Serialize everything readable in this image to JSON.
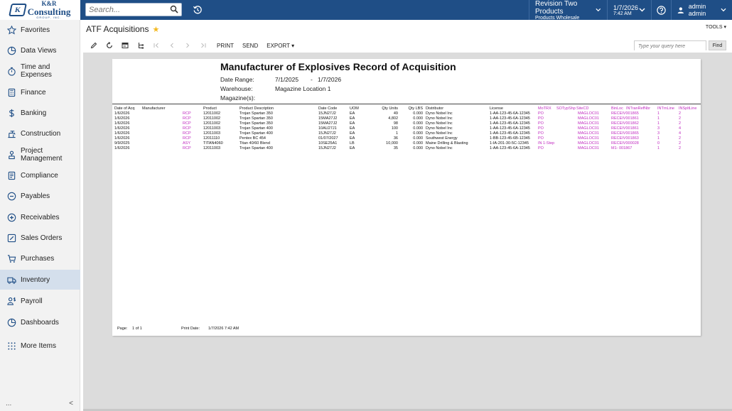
{
  "topbar": {
    "logo": {
      "line1": "K&R",
      "line2": "Consulting",
      "line3": "GROUP, INC.",
      "mark": "K"
    },
    "search_placeholder": "Search...",
    "branch": {
      "name": "Revision Two Products",
      "sub": "Products Wholesale"
    },
    "date": {
      "date": "1/7/2026",
      "time": "7:42 AM"
    },
    "user": "admin admin",
    "icons": [
      "search-icon",
      "history-icon",
      "chevron-down-icon",
      "help-icon",
      "user-icon"
    ],
    "color": "#1f4e86"
  },
  "sidebar": {
    "items": [
      {
        "label": "Favorites",
        "icon": "star-icon"
      },
      {
        "label": "Data Views",
        "icon": "pie-chart-icon"
      },
      {
        "label": "Time and Expenses",
        "icon": "stopwatch-icon"
      },
      {
        "label": "Finance",
        "icon": "calculator-icon"
      },
      {
        "label": "Banking",
        "icon": "dollar-icon"
      },
      {
        "label": "Construction",
        "icon": "construction-icon"
      },
      {
        "label": "Project Management",
        "icon": "project-icon"
      },
      {
        "label": "Compliance",
        "icon": "compliance-icon"
      },
      {
        "label": "Payables",
        "icon": "minus-circle-icon"
      },
      {
        "label": "Receivables",
        "icon": "plus-circle-icon"
      },
      {
        "label": "Sales Orders",
        "icon": "edit-icon"
      },
      {
        "label": "Purchases",
        "icon": "cart-icon"
      },
      {
        "label": "Inventory",
        "icon": "truck-icon"
      },
      {
        "label": "Payroll",
        "icon": "payroll-icon"
      },
      {
        "label": "Dashboards",
        "icon": "dashboard-icon"
      },
      {
        "label": "More Items",
        "icon": "grid-icon"
      }
    ],
    "active": "Inventory",
    "bottom_more": "...",
    "collapse": "<"
  },
  "screen": {
    "title": "ATF Acquisitions",
    "tools": "TOOLS",
    "toolbar": {
      "print": "PRINT",
      "send": "SEND",
      "export": "EXPORT"
    },
    "query_placeholder": "Type your query here",
    "find": "Find"
  },
  "report": {
    "title": "Manufacturer of Explosives Record of Acquisition",
    "date_range_label": "Date Range:",
    "date_from": "7/1/2025",
    "date_sep": "-",
    "date_to": "1/7/2026",
    "warehouse_label": "Warehouse:",
    "warehouse": "Magazine Location 1",
    "magazine_label": "Magazine(s):",
    "columns": [
      "Date of Acq",
      "Manufacturer",
      "Product",
      "Product Description",
      "Date Code",
      "UOM",
      "Qty Units",
      "Qty LBS",
      "Distributor",
      "License",
      "MoTRX",
      "SOTyp",
      "Shp",
      "SiteCD",
      "BinLoc",
      "INTranRefNbr",
      "INTrnLine",
      "INSpltLine"
    ],
    "rows": [
      {
        "date": "1/6/2026",
        "mfr": "RCP",
        "product": "12011002",
        "desc": "Trojan Spartan 350",
        "code": "15JN27J2",
        "uom": "EA",
        "qty": "49",
        "lbs": "0.000",
        "dist": "Dyno Nobel Inc",
        "lic": "1-AA-123-45-6A-12345",
        "motrx": "PO",
        "site": "MAGLOC01",
        "ref": "RECEIV001865",
        "trn": "1",
        "splt": "2"
      },
      {
        "date": "1/6/2026",
        "mfr": "RCP",
        "product": "12011002",
        "desc": "Trojan Spartan 350",
        "code": "15MA27J2",
        "uom": "EA",
        "qty": "4,802",
        "lbs": "0.000",
        "dist": "Dyno Nobel Inc",
        "lic": "1-AA-123-45-6A-12345",
        "motrx": "PO",
        "site": "MAGLOC01",
        "ref": "RECEIV001861",
        "trn": "1",
        "splt": "2"
      },
      {
        "date": "1/6/2026",
        "mfr": "RCP",
        "product": "12011002",
        "desc": "Trojan Spartan 350",
        "code": "15MA27J2",
        "uom": "EA",
        "qty": "98",
        "lbs": "0.000",
        "dist": "Dyno Nobel Inc",
        "lic": "1-AA-123-45-6A-12345",
        "motrx": "PO",
        "site": "MAGLOC01",
        "ref": "RECEIV001862",
        "trn": "1",
        "splt": "2"
      },
      {
        "date": "1/6/2026",
        "mfr": "RCP",
        "product": "12011003",
        "desc": "Trojan Spartan 400",
        "code": "10AU27J1",
        "uom": "EA",
        "qty": "100",
        "lbs": "0.000",
        "dist": "Dyno Nobel Inc",
        "lic": "1-AA-123-45-6A-12345",
        "motrx": "PO",
        "site": "MAGLOC01",
        "ref": "RECEIV001861",
        "trn": "3",
        "splt": "4"
      },
      {
        "date": "1/6/2026",
        "mfr": "RCP",
        "product": "12011003",
        "desc": "Trojan Spartan 400",
        "code": "15JN27J2",
        "uom": "EA",
        "qty": "1",
        "lbs": "0.000",
        "dist": "Dyno Nobel Inc",
        "lic": "1-AA-123-45-6A-12345",
        "motrx": "PO",
        "site": "MAGLOC01",
        "ref": "RECEIV001865",
        "trn": "3",
        "splt": "4"
      },
      {
        "date": "1/6/2026",
        "mfr": "RCP",
        "product": "12011110",
        "desc": "Pentex BC 454",
        "code": "01/07/2027",
        "uom": "EA",
        "qty": "36",
        "lbs": "0.000",
        "dist": "Southwest Energy",
        "lic": "1-BB-123-45-6B-12345",
        "motrx": "PO",
        "site": "MAGLOC01",
        "ref": "RECEIV001863",
        "trn": "1",
        "splt": "2"
      },
      {
        "date": "9/9/2025",
        "mfr": "ASY",
        "product": "TITAN4060",
        "desc": "Titan 40/60 Blend",
        "code": "10SE25A1",
        "uom": "LB",
        "qty": "10,000",
        "lbs": "0.000",
        "dist": "Maine Drilling & Blasting",
        "lic": "1-IA-201-30-5C-12345",
        "motrx": "IN  1-Step",
        "site": "MAGLOC01",
        "ref": "RECEIV000028",
        "trn": "0",
        "splt": "2"
      },
      {
        "date": "1/6/2026",
        "mfr": "RCP",
        "product": "12011003",
        "desc": "Trojan Spartan 400",
        "code": "15JN27J2",
        "uom": "EA",
        "qty": "35",
        "lbs": "0.000",
        "dist": "Dyno Nobel Inc",
        "lic": "1-AA-123-45-6A-12345",
        "motrx": "PO",
        "site": "MAGLOC01",
        "ref": "M1-     001867",
        "trn": "1",
        "splt": "2"
      }
    ],
    "footer": {
      "page_label": "Page:",
      "page": "1 of 1",
      "print_label": "Print Date:",
      "print_date": "1/7/2026 7:42 AM"
    },
    "accent_color": "#c02ac0"
  }
}
